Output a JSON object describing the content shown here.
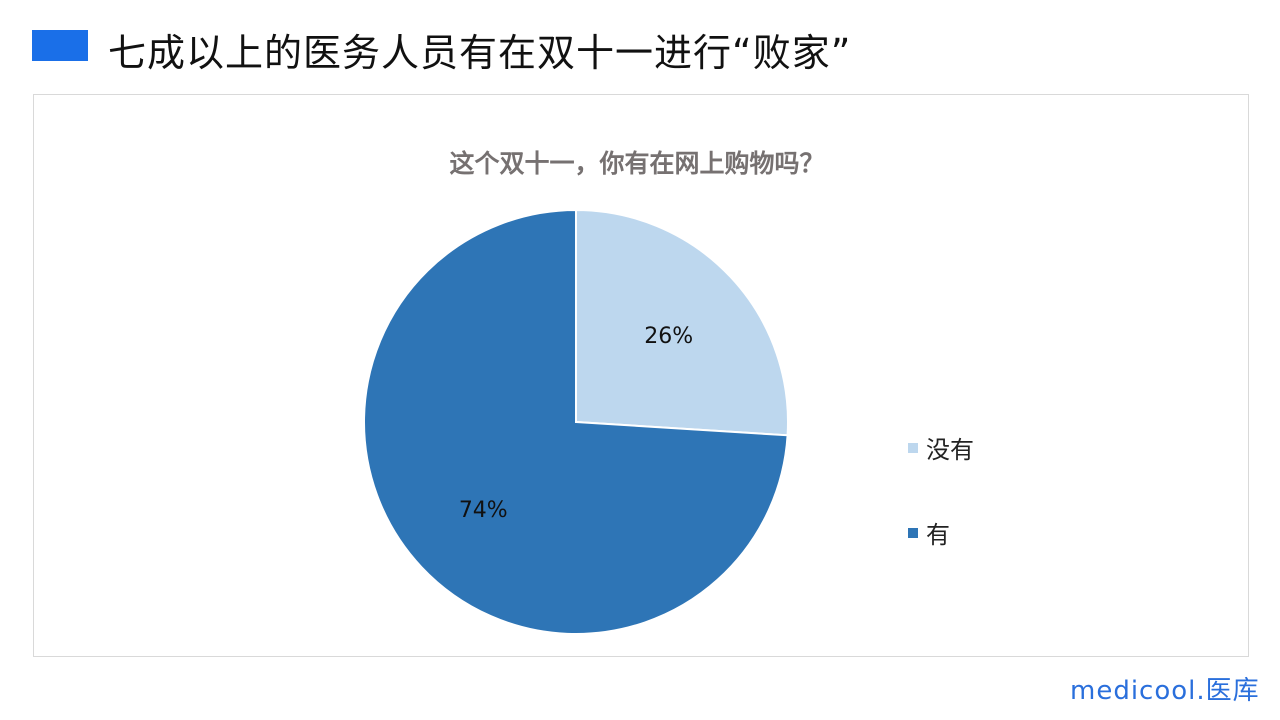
{
  "header": {
    "title": "七成以上的医务人员有在双十一进行“败家”",
    "accent_color": "#1a6fe8"
  },
  "chart_data": {
    "type": "pie",
    "title": "这个双十一，你有在网上购物吗？",
    "categories": [
      "没有",
      "有"
    ],
    "values": [
      26,
      74
    ],
    "data_labels": [
      "26%",
      "74%"
    ],
    "colors": [
      "#bdd7ee",
      "#2e75b6"
    ],
    "legend_position": "right"
  },
  "logo": {
    "text": "medicool.医库"
  }
}
